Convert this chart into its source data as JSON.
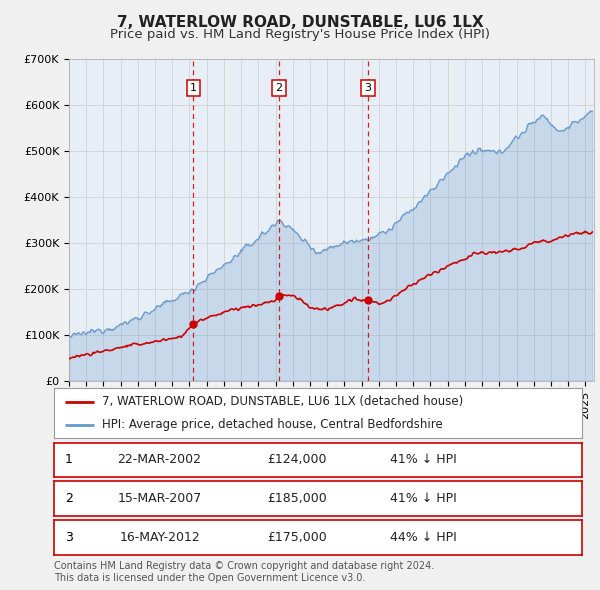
{
  "title": "7, WATERLOW ROAD, DUNSTABLE, LU6 1LX",
  "subtitle": "Price paid vs. HM Land Registry's House Price Index (HPI)",
  "background_color": "#f0f0f0",
  "plot_background": "#e8eef5",
  "ylabel": "",
  "ylim": [
    0,
    700000
  ],
  "yticks": [
    0,
    100000,
    200000,
    300000,
    400000,
    500000,
    600000,
    700000
  ],
  "ytick_labels": [
    "£0",
    "£100K",
    "£200K",
    "£300K",
    "£400K",
    "£500K",
    "£600K",
    "£700K"
  ],
  "xlim_start": 1995.0,
  "xlim_end": 2025.5,
  "red_line_color": "#cc0000",
  "blue_line_color": "#6699cc",
  "transaction_dates": [
    2002.22,
    2007.21,
    2012.37
  ],
  "transaction_prices": [
    124000,
    185000,
    175000
  ],
  "transaction_labels": [
    "1",
    "2",
    "3"
  ],
  "vline_color": "#cc0000",
  "legend_red_label": "7, WATERLOW ROAD, DUNSTABLE, LU6 1LX (detached house)",
  "legend_blue_label": "HPI: Average price, detached house, Central Bedfordshire",
  "table_data": [
    [
      "1",
      "22-MAR-2002",
      "£124,000",
      "41% ↓ HPI"
    ],
    [
      "2",
      "15-MAR-2007",
      "£185,000",
      "41% ↓ HPI"
    ],
    [
      "3",
      "16-MAY-2012",
      "£175,000",
      "44% ↓ HPI"
    ]
  ],
  "footnote": "Contains HM Land Registry data © Crown copyright and database right 2024.\nThis data is licensed under the Open Government Licence v3.0.",
  "title_fontsize": 11,
  "subtitle_fontsize": 9.5,
  "tick_fontsize": 8,
  "legend_fontsize": 8.5,
  "table_fontsize": 9,
  "footnote_fontsize": 7
}
